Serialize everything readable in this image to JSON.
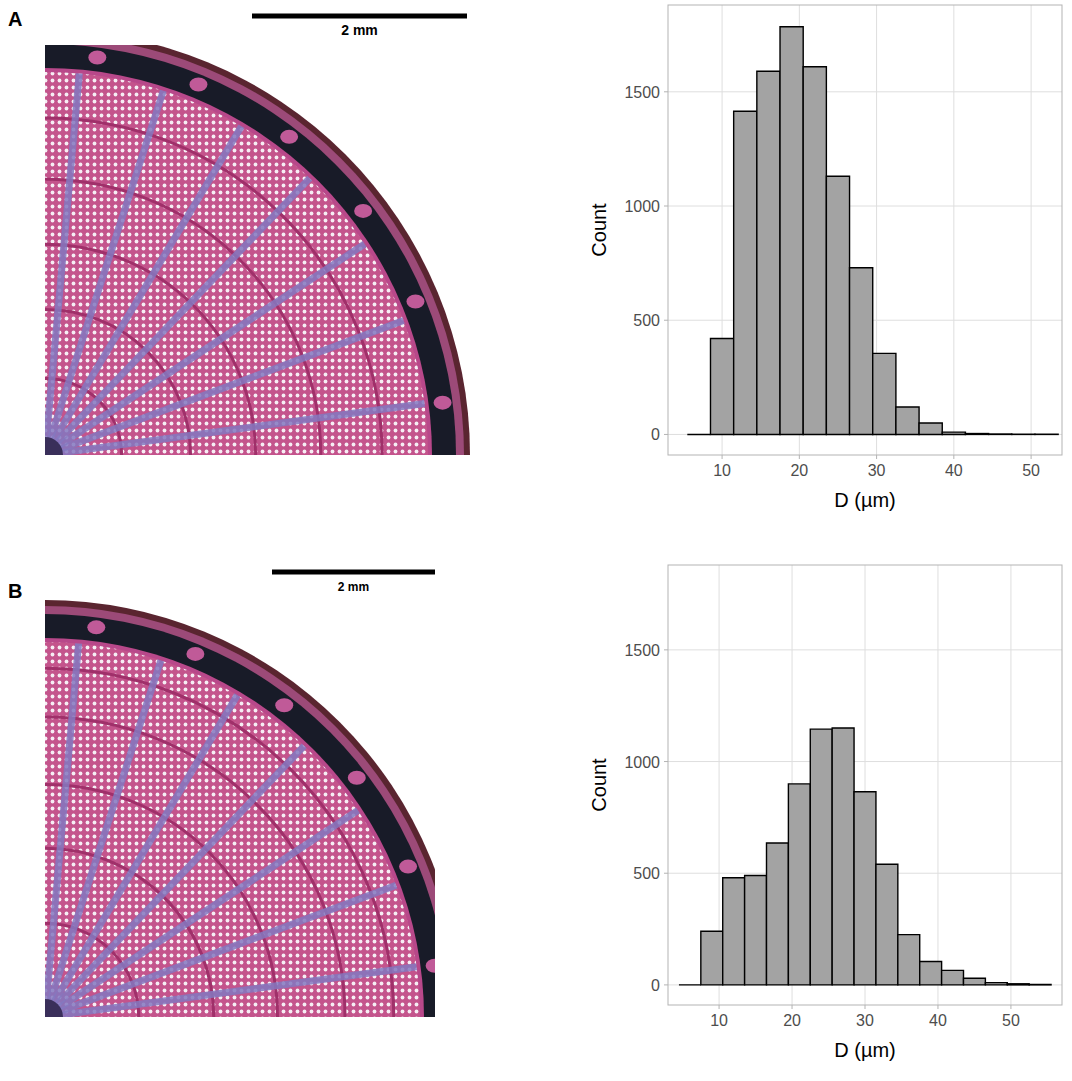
{
  "panels": [
    {
      "label": "A",
      "scale_bar": "2 mm"
    },
    {
      "label": "B",
      "scale_bar": "2 mm"
    }
  ],
  "chart_data": [
    {
      "type": "histogram",
      "x_label": "D (µm)",
      "y_label": "Count",
      "bins": [
        5.5,
        8.5,
        11.5,
        14.5,
        17.5,
        20.5,
        23.5,
        26.5,
        29.5,
        32.5,
        35.5,
        38.5,
        41.5,
        44.5,
        47.5,
        50.5,
        53.5
      ],
      "values": [
        0,
        420,
        1415,
        1590,
        1785,
        1610,
        1130,
        730,
        355,
        120,
        50,
        10,
        4,
        2,
        1,
        1
      ],
      "color": "#a3a3a3",
      "xlim": [
        3,
        54
      ],
      "ylim": [
        -90,
        1880
      ],
      "xticks": [
        10,
        20,
        30,
        40,
        50
      ],
      "yticks": [
        0,
        500,
        1000,
        1500
      ],
      "grid": true
    },
    {
      "type": "histogram",
      "x_label": "D (µm)",
      "y_label": "Count",
      "bins": [
        4.5,
        7.5,
        10.5,
        13.5,
        16.5,
        19.5,
        22.5,
        25.5,
        28.5,
        31.5,
        34.5,
        37.5,
        40.5,
        43.5,
        46.5,
        49.5,
        52.5,
        55.5
      ],
      "values": [
        0,
        240,
        480,
        490,
        635,
        900,
        1145,
        1150,
        865,
        540,
        225,
        105,
        65,
        30,
        10,
        5,
        2
      ],
      "color": "#a3a3a3",
      "xlim": [
        3,
        57
      ],
      "ylim": [
        -90,
        1880
      ],
      "xticks": [
        10,
        20,
        30,
        40,
        50
      ],
      "yticks": [
        0,
        500,
        1000,
        1500
      ],
      "grid": true
    }
  ]
}
